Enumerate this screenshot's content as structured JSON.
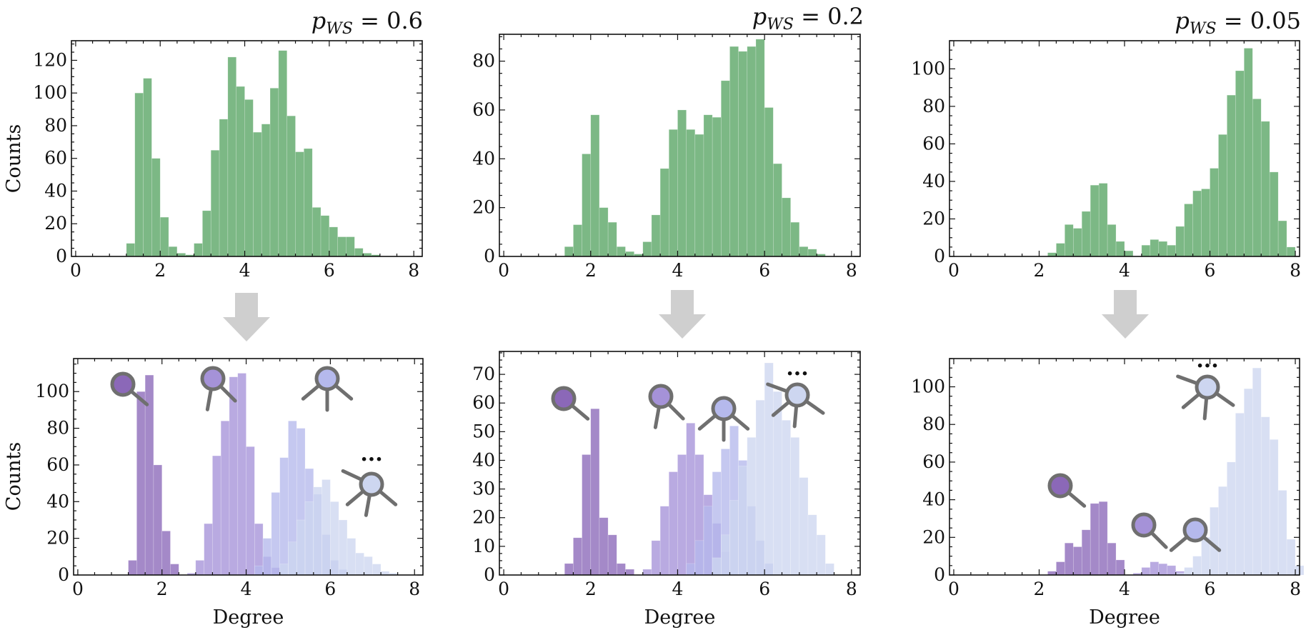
{
  "colors": {
    "top_bars": "#6aae74",
    "deg1": "#8b68b8",
    "deg2": "#a592d8",
    "deg3": "#b5b9ec",
    "deg4": "#cdd6f0",
    "arrow": "#cfcfcf",
    "icon_stroke": "#6f6f6f"
  },
  "labels": {
    "counts": "Counts",
    "degree": "Degree",
    "ellipsis": "..."
  },
  "chart_data": [
    {
      "type": "bar",
      "id": "top-0.6",
      "title_var": "p",
      "title_sub": "WS",
      "title_eq": " = ",
      "title_val": "0.6",
      "ylabel": "Counts",
      "xlim": [
        -0.1,
        8.2
      ],
      "ylim": [
        0,
        132
      ],
      "xticks": [
        0,
        2,
        4,
        6,
        8
      ],
      "yticks": [
        0,
        20,
        40,
        60,
        80,
        100,
        120
      ],
      "bin_start": 1.2,
      "bin_width": 0.2,
      "series": [
        {
          "name": "all",
          "values": [
            8,
            100,
            109,
            60,
            24,
            6,
            2,
            1,
            8,
            28,
            65,
            84,
            122,
            104,
            96,
            76,
            81,
            103,
            126,
            86,
            64,
            66,
            30,
            25,
            18,
            12,
            12,
            5,
            2,
            1
          ]
        }
      ]
    },
    {
      "type": "bar",
      "id": "top-0.2",
      "title_var": "p",
      "title_sub": "WS",
      "title_eq": " = ",
      "title_val": "0.2",
      "ylabel": "",
      "xlim": [
        -0.1,
        8.2
      ],
      "ylim": [
        0,
        91
      ],
      "xticks": [
        0,
        2,
        4,
        6,
        8
      ],
      "yticks": [
        0,
        20,
        40,
        60,
        80
      ],
      "bin_start": 1.4,
      "bin_width": 0.2,
      "series": [
        {
          "name": "all",
          "values": [
            4,
            13,
            42,
            58,
            20,
            14,
            4,
            2,
            1,
            6,
            17,
            36,
            52,
            60,
            52,
            50,
            58,
            57,
            72,
            86,
            84,
            86,
            89,
            61,
            38,
            24,
            14,
            4,
            3,
            1
          ]
        }
      ]
    },
    {
      "type": "bar",
      "id": "top-0.05",
      "title_var": "p",
      "title_sub": "WS",
      "title_eq": " = ",
      "title_val": "0.05",
      "ylabel": "",
      "xlim": [
        -0.1,
        8.1
      ],
      "ylim": [
        0,
        115
      ],
      "xticks": [
        0,
        2,
        4,
        6,
        8
      ],
      "yticks": [
        0,
        20,
        40,
        60,
        80,
        100
      ],
      "bin_start": 2.0,
      "bin_width": 0.2,
      "series": [
        {
          "name": "all",
          "values": [
            0,
            2,
            7,
            17,
            15,
            24,
            38,
            39,
            17,
            8,
            3,
            0,
            6,
            9,
            8,
            6,
            16,
            28,
            35,
            36,
            47,
            65,
            86,
            99,
            111,
            84,
            72,
            45,
            19,
            5
          ]
        }
      ]
    },
    {
      "type": "bar",
      "id": "bottom-0.6",
      "ylabel": "Counts",
      "xlabel": "Degree",
      "xlim": [
        -0.1,
        8.2
      ],
      "ylim": [
        0,
        118
      ],
      "xticks": [
        0,
        2,
        4,
        6,
        8
      ],
      "yticks": [
        0,
        20,
        40,
        60,
        80,
        100
      ],
      "bin_width": 0.2,
      "series": [
        {
          "name": "degree-1",
          "color_key": "deg1",
          "start": 1.2,
          "values": [
            8,
            100,
            109,
            60,
            24,
            6
          ]
        },
        {
          "name": "degree-2",
          "color_key": "deg2",
          "start": 2.6,
          "values": [
            1,
            8,
            28,
            65,
            84,
            108,
            110,
            70,
            28,
            10,
            4
          ]
        },
        {
          "name": "degree-3",
          "color_key": "deg3",
          "start": 4.2,
          "values": [
            5,
            20,
            45,
            64,
            84,
            80,
            58,
            44,
            22,
            8,
            3
          ]
        },
        {
          "name": "degree-4",
          "color_key": "deg4",
          "start": 4.8,
          "values": [
            6,
            18,
            30,
            40,
            48,
            52,
            40,
            30,
            20,
            12,
            10,
            6,
            2,
            1
          ]
        }
      ]
    },
    {
      "type": "bar",
      "id": "bottom-0.2",
      "ylabel": "",
      "xlabel": "Degree",
      "xlim": [
        -0.1,
        8.2
      ],
      "ylim": [
        0,
        78
      ],
      "xticks": [
        0,
        2,
        4,
        6,
        8
      ],
      "yticks": [
        0,
        10,
        20,
        30,
        40,
        50,
        60,
        70
      ],
      "bin_width": 0.2,
      "series": [
        {
          "name": "degree-1",
          "color_key": "deg1",
          "start": 1.4,
          "values": [
            4,
            13,
            42,
            58,
            20,
            14,
            4,
            2
          ]
        },
        {
          "name": "degree-2",
          "color_key": "deg2",
          "start": 3.2,
          "values": [
            2,
            12,
            24,
            36,
            42,
            53,
            42,
            28,
            18,
            8
          ]
        },
        {
          "name": "degree-3",
          "color_key": "deg3",
          "start": 4.2,
          "values": [
            4,
            12,
            24,
            36,
            44,
            52,
            40,
            24,
            12,
            4
          ]
        },
        {
          "name": "degree-4",
          "color_key": "deg4",
          "start": 4.8,
          "values": [
            6,
            14,
            26,
            38,
            48,
            61,
            74,
            64,
            54,
            48,
            34,
            21,
            14,
            4
          ]
        }
      ]
    },
    {
      "type": "bar",
      "id": "bottom-0.05",
      "ylabel": "",
      "xlabel": "Degree",
      "xlim": [
        -0.1,
        8.1
      ],
      "ylim": [
        0,
        115
      ],
      "xticks": [
        0,
        2,
        4,
        6,
        8
      ],
      "yticks": [
        0,
        20,
        40,
        60,
        80,
        100
      ],
      "bin_width": 0.2,
      "series": [
        {
          "name": "degree-1",
          "color_key": "deg1",
          "start": 2.2,
          "values": [
            2,
            7,
            17,
            15,
            24,
            38,
            39,
            17,
            8
          ]
        },
        {
          "name": "degree-2",
          "color_key": "deg2",
          "start": 4.2,
          "values": [
            1,
            4,
            7,
            6,
            5,
            2
          ]
        },
        {
          "name": "degree-4",
          "color_key": "deg4",
          "start": 5.2,
          "values": [
            1,
            4,
            10,
            20,
            36,
            47,
            60,
            86,
            99,
            110,
            84,
            72,
            45,
            19,
            5
          ]
        }
      ]
    }
  ]
}
